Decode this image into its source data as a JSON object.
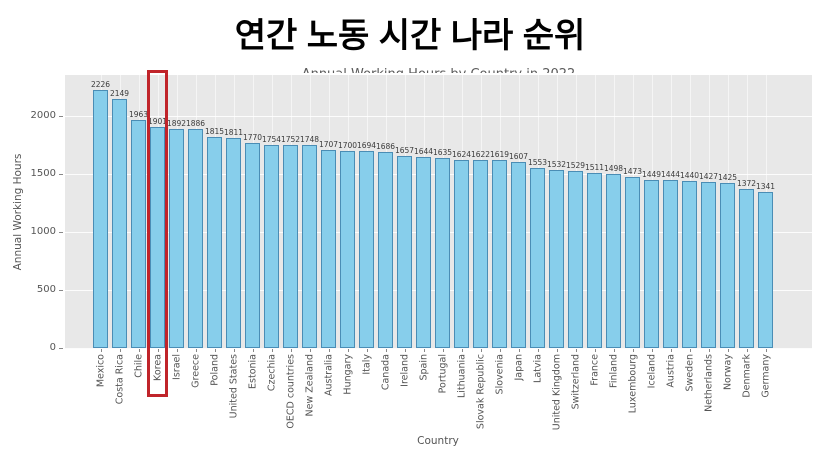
{
  "slide": {
    "title": "연간 노동 시간 나라 순위"
  },
  "chart_data": {
    "type": "bar",
    "title": "Annual Working Hours by Country in 2022",
    "xlabel": "Country",
    "ylabel": "Annual Working Hours",
    "ylim": [
      0,
      2300
    ],
    "yticks": [
      0,
      500,
      1000,
      1500,
      2000
    ],
    "grid": true,
    "legend_position": "none",
    "highlighted_category": "Korea",
    "categories": [
      "Mexico",
      "Costa Rica",
      "Chile",
      "Korea",
      "Israel",
      "Greece",
      "Poland",
      "United States",
      "Estonia",
      "Czechia",
      "OECD countries",
      "New Zealand",
      "Australia",
      "Hungary",
      "Italy",
      "Canada",
      "Ireland",
      "Spain",
      "Portugal",
      "Lithuania",
      "Slovak Republic",
      "Slovenia",
      "Japan",
      "Latvia",
      "United Kingdom",
      "Switzerland",
      "France",
      "Finland",
      "Luxembourg",
      "Iceland",
      "Austria",
      "Sweden",
      "Netherlands",
      "Norway",
      "Denmark",
      "Germany"
    ],
    "values": [
      2226,
      2149,
      1963,
      1901,
      1892,
      1886,
      1815,
      1811,
      1770,
      1754,
      1752,
      1748,
      1707,
      1700,
      1694,
      1686,
      1657,
      1644,
      1635,
      1624,
      1622,
      1619,
      1607,
      1553,
      1532,
      1529,
      1511,
      1498,
      1473,
      1449,
      1444,
      1440,
      1427,
      1425,
      1372,
      1341
    ]
  },
  "theme": {
    "bar_fill": "#87CEEB",
    "bar_edge": "#4a8db5",
    "plot_background": "#e8e8e8",
    "highlight_color": "#c0242a",
    "text_color": "#555555",
    "value_label_color": "#3a3a3a",
    "title_color": "#000000"
  }
}
